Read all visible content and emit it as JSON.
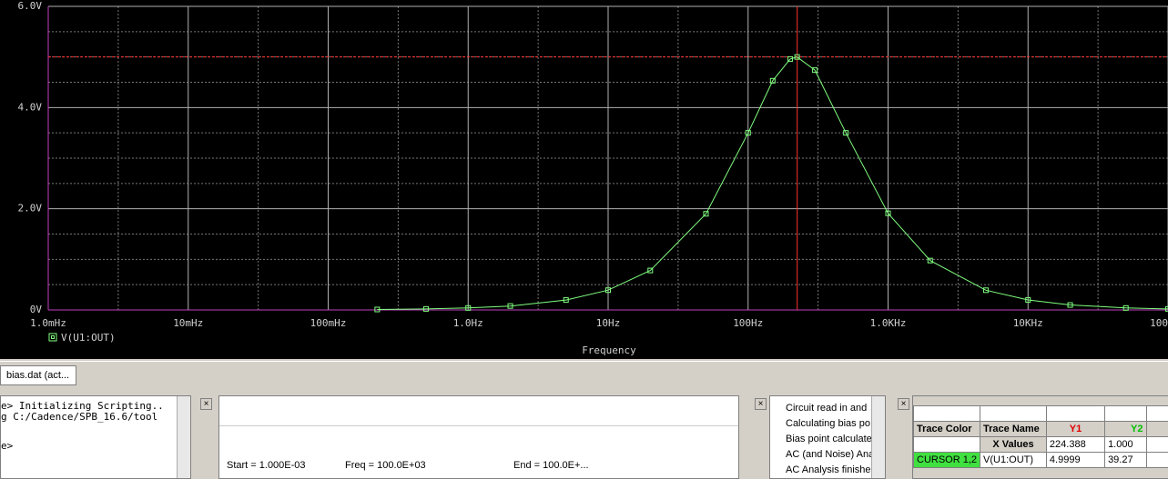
{
  "chart_data": {
    "type": "line",
    "x_label": "Frequency",
    "xscale": "log",
    "grid": true,
    "x": [
      0.224,
      0.5,
      1,
      2,
      5,
      10,
      20,
      50,
      100,
      150,
      200,
      224,
      300,
      500,
      1000,
      2000,
      5000,
      10000,
      20000,
      50000,
      100000
    ],
    "series": [
      {
        "name": "V(U1:OUT)",
        "color": "#80ff80",
        "values": [
          0.009,
          0.02,
          0.039,
          0.078,
          0.196,
          0.391,
          0.78,
          1.9,
          3.5,
          4.53,
          4.96,
          5.0,
          4.74,
          3.5,
          1.91,
          0.976,
          0.39,
          0.197,
          0.098,
          0.039,
          0.02
        ]
      }
    ],
    "xlim": [
      0.001,
      100000
    ],
    "xticks": [
      {
        "value": 0.001,
        "label": "1.0mHz"
      },
      {
        "value": 0.01,
        "label": "10mHz"
      },
      {
        "value": 0.1,
        "label": "100mHz"
      },
      {
        "value": 1,
        "label": "1.0Hz"
      },
      {
        "value": 10,
        "label": "10Hz"
      },
      {
        "value": 100,
        "label": "100Hz"
      },
      {
        "value": 1000,
        "label": "1.0KHz"
      },
      {
        "value": 10000,
        "label": "10KHz"
      },
      {
        "value": 100000,
        "label": "100KHz"
      }
    ],
    "ylim": [
      0,
      6
    ],
    "yticks": [
      {
        "value": 0,
        "label": "0V"
      },
      {
        "value": 2,
        "label": "2.0V"
      },
      {
        "value": 4,
        "label": "4.0V"
      },
      {
        "value": 6,
        "label": "6.0V"
      }
    ],
    "cursor": {
      "x": 224.388,
      "y": 4.9999,
      "color": "#ff3030"
    }
  },
  "ui": {
    "tab": "bias.dat (act...",
    "console": [
      "e> Initializing Scripting..",
      "g C:/Cadence/SPB_16.6/tool",
      "e>"
    ],
    "sim_params": [
      "Start = 1.000E-03",
      "Freq = 100.0E+03",
      "End = 100.0E+..."
    ],
    "log": [
      "Circuit read in and",
      "Calculating bias po",
      "Bias point calculate",
      "AC (and Noise) Ana",
      "AC Analysis finishe"
    ],
    "cursor_table": {
      "header": [
        "Trace Color",
        "Trace Name",
        "Y1",
        "Y2"
      ],
      "x_label": "X Values",
      "x2": "1.000",
      "row_label": "CURSOR 1,2",
      "trace": "V(U1:OUT)",
      "y2": "39.27"
    }
  }
}
